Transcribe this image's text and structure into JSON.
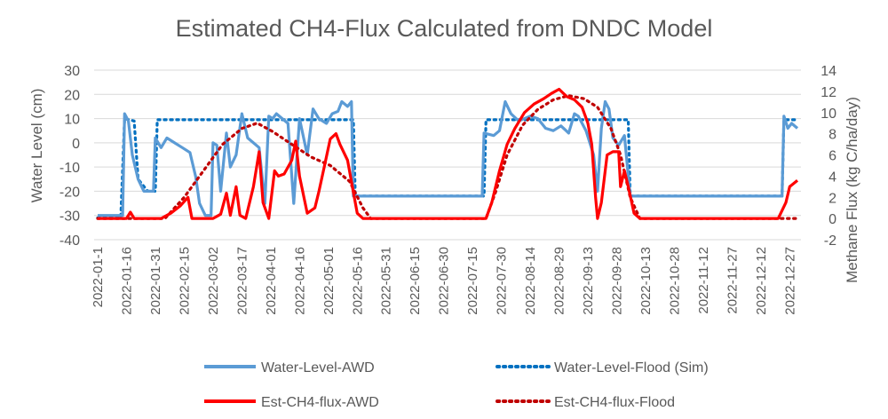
{
  "chart_data": {
    "type": "line",
    "title": "Estimated CH4-Flux Calculated from DNDC Model",
    "ylabel": "Water Level (cm)",
    "y2label": "Methane Flux (kg C/ha/day)",
    "ylim": [
      -40,
      30
    ],
    "y2lim": [
      -2,
      14
    ],
    "yticks": [
      "30",
      "20",
      "10",
      "0",
      "-10",
      "-20",
      "-30",
      "-40"
    ],
    "y2ticks": [
      "14",
      "12",
      "10",
      "8",
      "6",
      "4",
      "2",
      "0",
      "-2"
    ],
    "xticks": [
      "2022-01-1",
      "2022-01-16",
      "2022-01-31",
      "2022-02-15",
      "2022-03-02",
      "2022-03-17",
      "2022-04-01",
      "2022-04-16",
      "2022-05-01",
      "2022-05-16",
      "2022-05-31",
      "2022-06-15",
      "2022-06-30",
      "2022-07-15",
      "2022-07-30",
      "2022-08-14",
      "2022-08-29",
      "2022-09-13",
      "2022-09-28",
      "2022-10-13",
      "2022-10-28",
      "2022-11-12",
      "2022-11-27",
      "2022-12-12",
      "2022-12-27"
    ],
    "grid": true,
    "legend_position": "bottom",
    "series": [
      {
        "name": "Water-Level-AWD",
        "axis": "left",
        "color": "#5b9bd5",
        "style": "solid",
        "points": [
          [
            "2022-01-01",
            -30
          ],
          [
            "2022-01-14",
            -30
          ],
          [
            "2022-01-15",
            12
          ],
          [
            "2022-01-17",
            9
          ],
          [
            "2022-01-19",
            -5
          ],
          [
            "2022-01-22",
            -15
          ],
          [
            "2022-01-25",
            -20
          ],
          [
            "2022-01-30",
            -20
          ],
          [
            "2022-01-31",
            2
          ],
          [
            "2022-02-03",
            -2
          ],
          [
            "2022-02-06",
            2
          ],
          [
            "2022-02-10",
            0
          ],
          [
            "2022-02-14",
            -2
          ],
          [
            "2022-02-18",
            -4
          ],
          [
            "2022-02-21",
            -14
          ],
          [
            "2022-02-23",
            -25
          ],
          [
            "2022-02-26",
            -30
          ],
          [
            "2022-03-01",
            -30
          ],
          [
            "2022-03-02",
            0
          ],
          [
            "2022-03-04",
            -1
          ],
          [
            "2022-03-06",
            -20
          ],
          [
            "2022-03-09",
            4
          ],
          [
            "2022-03-11",
            -10
          ],
          [
            "2022-03-14",
            -5
          ],
          [
            "2022-03-17",
            12
          ],
          [
            "2022-03-20",
            2
          ],
          [
            "2022-03-23",
            0
          ],
          [
            "2022-03-26",
            -2
          ],
          [
            "2022-03-29",
            -25
          ],
          [
            "2022-03-31",
            11
          ],
          [
            "2022-04-02",
            10
          ],
          [
            "2022-04-04",
            12
          ],
          [
            "2022-04-07",
            10
          ],
          [
            "2022-04-10",
            8
          ],
          [
            "2022-04-13",
            -25
          ],
          [
            "2022-04-16",
            10
          ],
          [
            "2022-04-20",
            -5
          ],
          [
            "2022-04-23",
            14
          ],
          [
            "2022-04-26",
            10
          ],
          [
            "2022-04-30",
            8
          ],
          [
            "2022-05-03",
            12
          ],
          [
            "2022-05-06",
            13
          ],
          [
            "2022-05-08",
            17
          ],
          [
            "2022-05-11",
            15
          ],
          [
            "2022-05-13",
            17
          ],
          [
            "2022-05-14",
            -22
          ],
          [
            "2022-07-20",
            -22
          ],
          [
            "2022-07-21",
            4
          ],
          [
            "2022-07-26",
            3
          ],
          [
            "2022-07-29",
            5
          ],
          [
            "2022-08-01",
            17
          ],
          [
            "2022-08-04",
            12
          ],
          [
            "2022-08-08",
            9
          ],
          [
            "2022-08-14",
            11
          ],
          [
            "2022-08-18",
            10
          ],
          [
            "2022-08-22",
            6
          ],
          [
            "2022-08-26",
            5
          ],
          [
            "2022-08-30",
            7
          ],
          [
            "2022-09-03",
            4
          ],
          [
            "2022-09-06",
            12
          ],
          [
            "2022-09-08",
            11
          ],
          [
            "2022-09-12",
            5
          ],
          [
            "2022-09-16",
            -5
          ],
          [
            "2022-09-18",
            -20
          ],
          [
            "2022-09-20",
            6
          ],
          [
            "2022-09-22",
            17
          ],
          [
            "2022-09-24",
            14
          ],
          [
            "2022-09-26",
            2
          ],
          [
            "2022-09-29",
            -1
          ],
          [
            "2022-10-02",
            3
          ],
          [
            "2022-10-05",
            -22
          ],
          [
            "2022-12-23",
            -22
          ],
          [
            "2022-12-24",
            11
          ],
          [
            "2022-12-26",
            6
          ],
          [
            "2022-12-28",
            8
          ],
          [
            "2022-12-31",
            6
          ]
        ]
      },
      {
        "name": "Water-Level-Flood (Sim)",
        "axis": "left",
        "color": "#0070c0",
        "style": "dotted",
        "points": [
          [
            "2022-01-01",
            -31
          ],
          [
            "2022-01-13",
            -31
          ],
          [
            "2022-01-15",
            10
          ],
          [
            "2022-01-20",
            9
          ],
          [
            "2022-01-22",
            -15
          ],
          [
            "2022-01-27",
            -20
          ],
          [
            "2022-01-31",
            -20
          ],
          [
            "2022-02-01",
            9.5
          ],
          [
            "2022-05-14",
            9.5
          ],
          [
            "2022-05-15",
            -22
          ],
          [
            "2022-07-21",
            -22
          ],
          [
            "2022-07-22",
            9.5
          ],
          [
            "2022-10-04",
            9.5
          ],
          [
            "2022-10-05",
            -22
          ],
          [
            "2022-12-23",
            -22
          ],
          [
            "2022-12-24",
            9.5
          ],
          [
            "2022-12-31",
            9.5
          ]
        ]
      },
      {
        "name": "Est-CH4-flux-AWD",
        "axis": "right",
        "color": "#ff0000",
        "style": "solid",
        "points": [
          [
            "2022-01-01",
            0
          ],
          [
            "2022-01-16",
            0
          ],
          [
            "2022-01-18",
            0.6
          ],
          [
            "2022-01-20",
            0
          ],
          [
            "2022-02-03",
            0
          ],
          [
            "2022-02-08",
            0.5
          ],
          [
            "2022-02-13",
            1.2
          ],
          [
            "2022-02-17",
            2
          ],
          [
            "2022-02-19",
            0
          ],
          [
            "2022-03-02",
            0
          ],
          [
            "2022-03-06",
            0.4
          ],
          [
            "2022-03-09",
            2.4
          ],
          [
            "2022-03-11",
            0.3
          ],
          [
            "2022-03-14",
            3
          ],
          [
            "2022-03-16",
            0.3
          ],
          [
            "2022-03-19",
            0
          ],
          [
            "2022-03-23",
            3
          ],
          [
            "2022-03-26",
            6.3
          ],
          [
            "2022-03-28",
            1.5
          ],
          [
            "2022-03-31",
            0
          ],
          [
            "2022-04-03",
            4.5
          ],
          [
            "2022-04-05",
            4
          ],
          [
            "2022-04-08",
            4.2
          ],
          [
            "2022-04-12",
            5.5
          ],
          [
            "2022-04-14",
            7.3
          ],
          [
            "2022-04-16",
            4
          ],
          [
            "2022-04-20",
            0.5
          ],
          [
            "2022-04-24",
            1
          ],
          [
            "2022-04-26",
            2.5
          ],
          [
            "2022-04-29",
            5
          ],
          [
            "2022-05-02",
            7.5
          ],
          [
            "2022-05-05",
            8
          ],
          [
            "2022-05-07",
            7
          ],
          [
            "2022-05-11",
            5.5
          ],
          [
            "2022-05-14",
            2.5
          ],
          [
            "2022-05-16",
            0.5
          ],
          [
            "2022-05-19",
            0
          ],
          [
            "2022-07-22",
            0
          ],
          [
            "2022-07-25",
            1.5
          ],
          [
            "2022-07-29",
            4.5
          ],
          [
            "2022-08-02",
            7
          ],
          [
            "2022-08-06",
            8.5
          ],
          [
            "2022-08-11",
            10
          ],
          [
            "2022-08-16",
            10.8
          ],
          [
            "2022-08-21",
            11.3
          ],
          [
            "2022-08-25",
            11.8
          ],
          [
            "2022-08-29",
            12.2
          ],
          [
            "2022-09-02",
            11.5
          ],
          [
            "2022-09-06",
            11.2
          ],
          [
            "2022-09-10",
            10.5
          ],
          [
            "2022-09-13",
            9
          ],
          [
            "2022-09-15",
            7
          ],
          [
            "2022-09-17",
            2
          ],
          [
            "2022-09-18",
            0
          ],
          [
            "2022-09-20",
            1.5
          ],
          [
            "2022-09-23",
            6
          ],
          [
            "2022-09-26",
            6.3
          ],
          [
            "2022-09-29",
            6.3
          ],
          [
            "2022-09-30",
            3
          ],
          [
            "2022-10-02",
            4.5
          ],
          [
            "2022-10-04",
            3
          ],
          [
            "2022-10-07",
            0.5
          ],
          [
            "2022-10-10",
            0
          ],
          [
            "2022-12-21",
            0
          ],
          [
            "2022-12-25",
            1.5
          ],
          [
            "2022-12-27",
            3
          ],
          [
            "2022-12-31",
            3.6
          ]
        ]
      },
      {
        "name": "Est-CH4-flux-Flood",
        "axis": "right",
        "color": "#c00000",
        "style": "dotted",
        "points": [
          [
            "2022-01-01",
            0
          ],
          [
            "2022-02-05",
            0
          ],
          [
            "2022-02-15",
            2
          ],
          [
            "2022-02-25",
            4.5
          ],
          [
            "2022-03-07",
            7
          ],
          [
            "2022-03-17",
            8.5
          ],
          [
            "2022-03-25",
            9
          ],
          [
            "2022-04-02",
            8.2
          ],
          [
            "2022-04-12",
            7
          ],
          [
            "2022-04-22",
            5.8
          ],
          [
            "2022-05-02",
            5
          ],
          [
            "2022-05-12",
            3.5
          ],
          [
            "2022-05-19",
            1
          ],
          [
            "2022-05-23",
            0
          ],
          [
            "2022-07-22",
            0
          ],
          [
            "2022-07-27",
            2.5
          ],
          [
            "2022-08-02",
            6
          ],
          [
            "2022-08-10",
            8.8
          ],
          [
            "2022-08-18",
            10.3
          ],
          [
            "2022-08-26",
            11.2
          ],
          [
            "2022-09-03",
            11.6
          ],
          [
            "2022-09-11",
            11.3
          ],
          [
            "2022-09-18",
            10.5
          ],
          [
            "2022-09-25",
            8.5
          ],
          [
            "2022-09-30",
            6
          ],
          [
            "2022-10-05",
            2
          ],
          [
            "2022-10-10",
            0
          ],
          [
            "2022-12-31",
            0
          ]
        ]
      }
    ]
  }
}
